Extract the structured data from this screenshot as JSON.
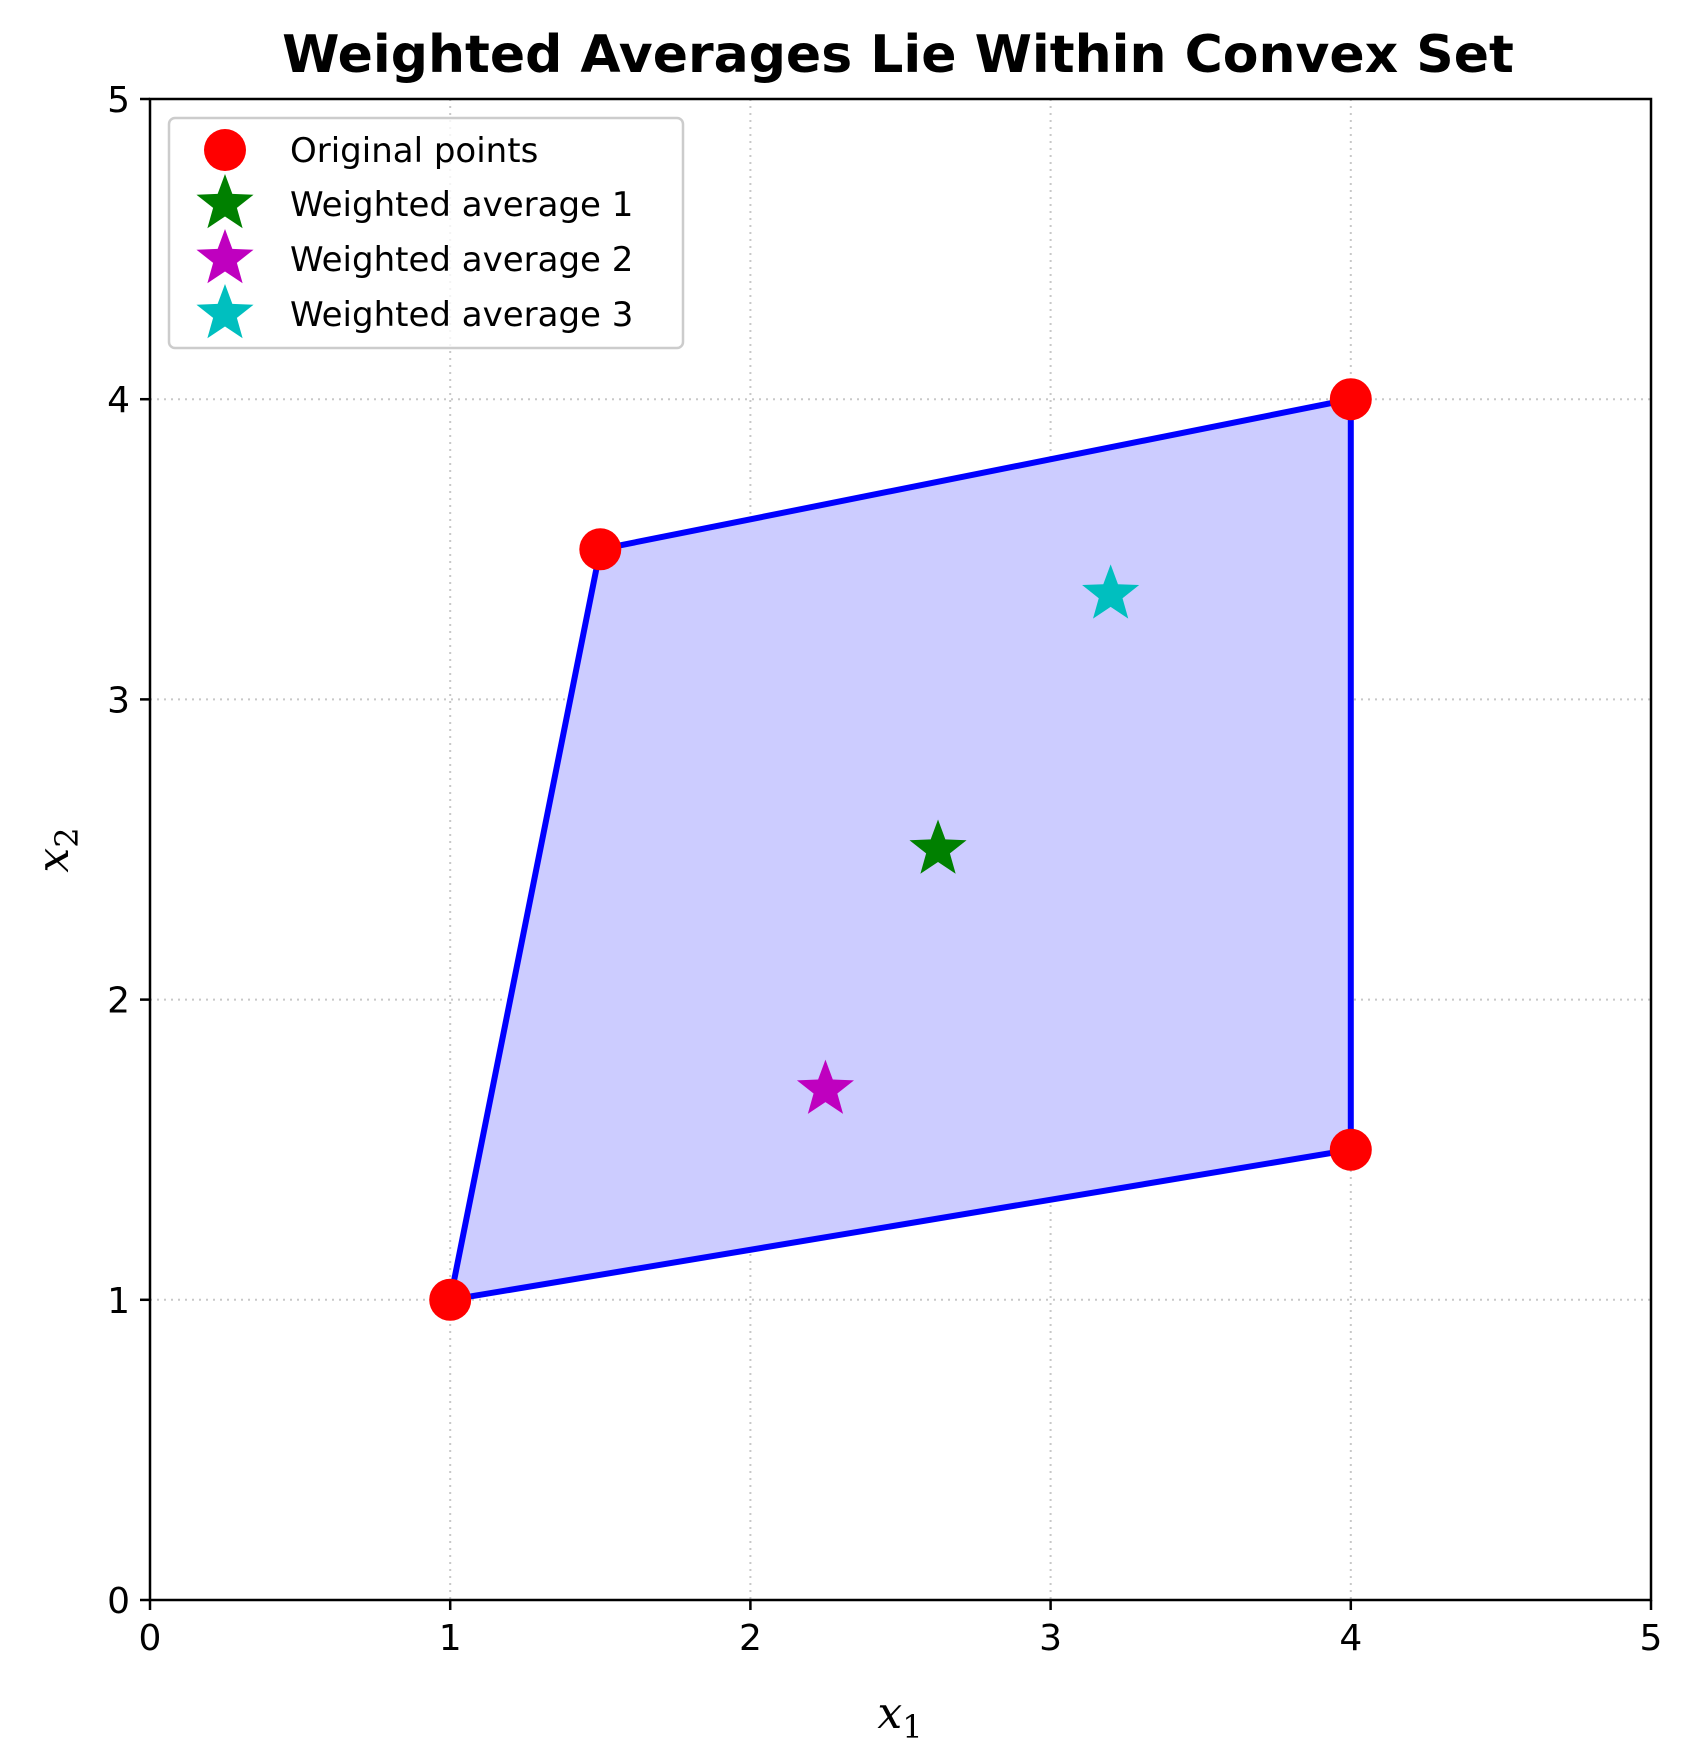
{
  "chart_data": {
    "type": "scatter",
    "title": "Weighted Averages Lie Within Convex Set",
    "xlabel": {
      "base": "x",
      "sub": "1"
    },
    "ylabel": {
      "base": "x",
      "sub": "2"
    },
    "xlim": [
      0,
      5
    ],
    "ylim": [
      0,
      5
    ],
    "xticks": [
      "0",
      "1",
      "2",
      "3",
      "4",
      "5"
    ],
    "yticks": [
      "0",
      "1",
      "2",
      "3",
      "4",
      "5"
    ],
    "grid": true,
    "legend_position": "top-left",
    "hull": {
      "vertices": [
        [
          1,
          1
        ],
        [
          4,
          1.5
        ],
        [
          4,
          4
        ],
        [
          1.5,
          3.5
        ]
      ],
      "fill_color": "#ccccff",
      "edge_color": "#0000ff"
    },
    "series": [
      {
        "name": "Original points",
        "marker": "circle",
        "color": "#ff0000",
        "points": [
          [
            1,
            1
          ],
          [
            1.5,
            3.5
          ],
          [
            4,
            4
          ],
          [
            4,
            1.5
          ]
        ]
      },
      {
        "name": "Weighted average 1",
        "marker": "star",
        "color": "#008000",
        "points": [
          [
            2.625,
            2.5
          ]
        ]
      },
      {
        "name": "Weighted average 2",
        "marker": "star",
        "color": "#bf00bf",
        "points": [
          [
            2.25,
            1.7
          ]
        ]
      },
      {
        "name": "Weighted average 3",
        "marker": "star",
        "color": "#00bfbf",
        "points": [
          [
            3.2,
            3.35
          ]
        ]
      }
    ]
  }
}
